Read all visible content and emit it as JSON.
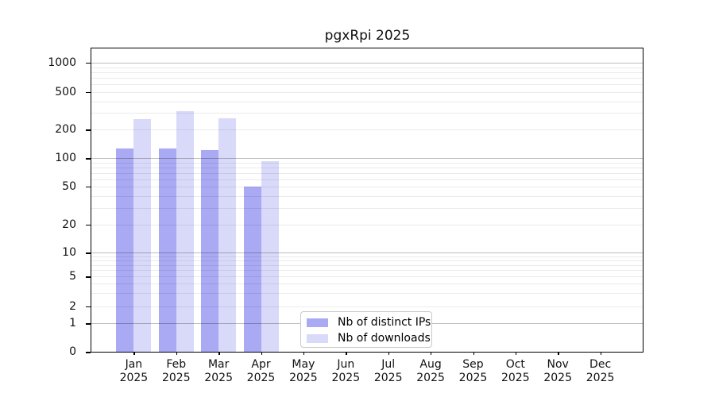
{
  "title": "pgxRpi 2025",
  "chart_data": {
    "type": "bar",
    "title": "pgxRpi 2025",
    "x_categories": [
      "Jan",
      "Feb",
      "Mar",
      "Apr",
      "May",
      "Jun",
      "Jul",
      "Aug",
      "Sep",
      "Oct",
      "Nov",
      "Dec"
    ],
    "x_year_label": "2025",
    "series": [
      {
        "name": "Nb of distinct IPs",
        "color": "#a9a9f4",
        "values": [
          125,
          127,
          122,
          50,
          null,
          null,
          null,
          null,
          null,
          null,
          null,
          null
        ]
      },
      {
        "name": "Nb of downloads",
        "color": "#d9d9fa",
        "values": [
          260,
          315,
          262,
          92,
          null,
          null,
          null,
          null,
          null,
          null,
          null,
          null
        ]
      }
    ],
    "y_ticks": [
      0,
      1,
      2,
      5,
      10,
      20,
      50,
      100,
      200,
      500,
      1000
    ],
    "y_scale": "log-like with zero baseline",
    "ylim": [
      0,
      1400
    ],
    "grid": "horizontal major+minor",
    "legend": {
      "position": "bottom-center-inside",
      "entries": [
        "Nb of distinct IPs",
        "Nb of downloads"
      ]
    },
    "colors": {
      "axis": "#000000",
      "major_grid": "#bfbfbf",
      "minor_grid": "#ebebeb",
      "background": "#ffffff"
    }
  }
}
